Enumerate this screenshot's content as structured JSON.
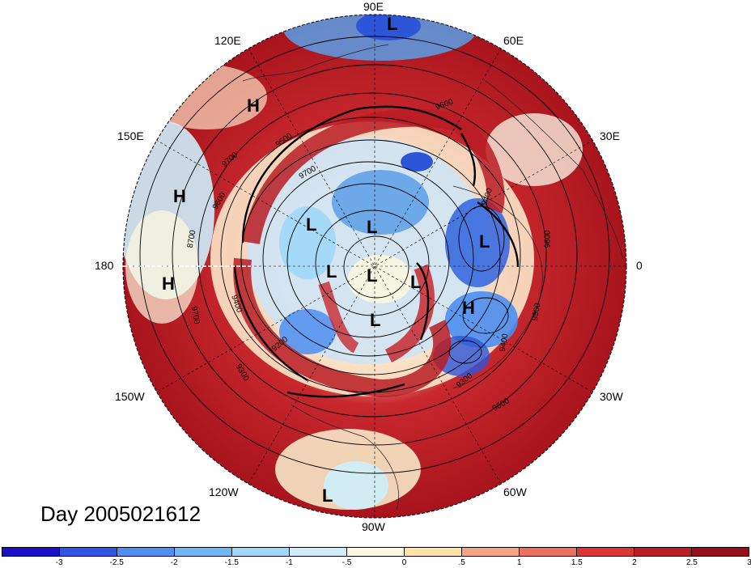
{
  "map": {
    "projection": "polar-stereographic",
    "hemisphere": "northern"
  },
  "day_label": "Day 2005021612",
  "lon_labels": {
    "e90": "90E",
    "e60": "60E",
    "e30": "30E",
    "zero": "0",
    "w30": "30W",
    "w60": "60W",
    "w90": "90W",
    "w120": "120W",
    "w150": "150W",
    "lon180": "180",
    "e150": "150E",
    "e120": "120E"
  },
  "pressure_centers": [
    {
      "label": "L",
      "name": "low-top"
    },
    {
      "label": "H",
      "name": "high-120e"
    },
    {
      "label": "H",
      "name": "high-150e"
    },
    {
      "label": "H",
      "name": "high-180"
    },
    {
      "label": "L",
      "name": "low-inner-nw"
    },
    {
      "label": "L",
      "name": "low-inner-n"
    },
    {
      "label": "L",
      "name": "low-inner-w"
    },
    {
      "label": "L",
      "name": "low-pole"
    },
    {
      "label": "L",
      "name": "low-inner-e"
    },
    {
      "label": "L",
      "name": "low-europe"
    },
    {
      "label": "H",
      "name": "high-atlantic"
    },
    {
      "label": "L",
      "name": "low-canada"
    },
    {
      "label": "L",
      "name": "low-bottom"
    }
  ],
  "contour_labels": [
    "9600",
    "9500",
    "9700",
    "9600",
    "9700",
    "8700",
    "9400",
    "9700",
    "9200",
    "9300",
    "9400",
    "9500",
    "9600",
    "9400",
    "9600",
    "9300"
  ],
  "colorbar": {
    "colors": [
      "#1a10c8",
      "#2f55e6",
      "#4d8ef0",
      "#6fb6f5",
      "#9fd7f8",
      "#cdeef9",
      "#fffadf",
      "#fde3a5",
      "#f4a582",
      "#eb7060",
      "#dc3535",
      "#bb1d22",
      "#9a0e1a"
    ],
    "ticks": [
      "-3",
      "-2.5",
      "-2",
      "-1.5",
      "-1",
      "-.5",
      "0",
      ".5",
      "1",
      "1.5",
      "2",
      "2.5",
      "3"
    ]
  }
}
